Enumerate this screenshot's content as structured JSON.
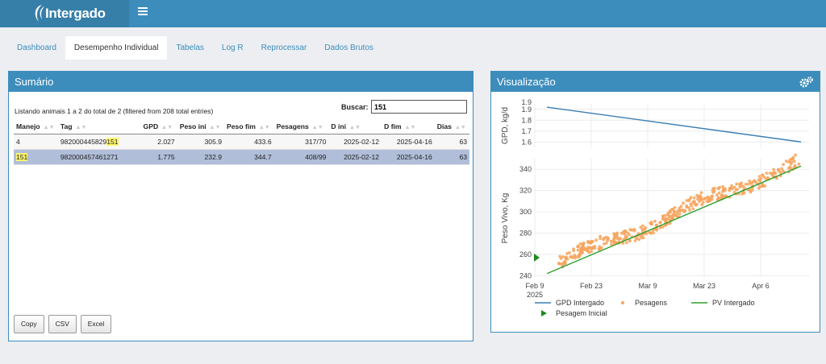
{
  "app": {
    "logo_text": "Intergado",
    "menu_icon": "hamburger-icon"
  },
  "tabs": [
    {
      "label": "Dashboard",
      "active": false
    },
    {
      "label": "Desempenho Individual",
      "active": true
    },
    {
      "label": "Tabelas",
      "active": false
    },
    {
      "label": "Log R",
      "active": false
    },
    {
      "label": "Reprocessar",
      "active": false
    },
    {
      "label": "Dados Brutos",
      "active": false
    }
  ],
  "sumario": {
    "title": "Sumário",
    "info": "Listando animais 1 a 2 do total de 2 (filtered from 208 total entries)",
    "search_label": "Buscar:",
    "search_value": "151",
    "columns": [
      "Manejo",
      "Tag",
      "GPD",
      "Peso ini",
      "Peso fim",
      "Pesagens",
      "D ini",
      "D fim",
      "Dias"
    ],
    "rows": [
      {
        "manejo": "4",
        "tag_prefix": "982000445829",
        "tag_match": "151",
        "gpd": "2.027",
        "peso_ini": "305.9",
        "peso_fim": "433.6",
        "pesagens": "317/70",
        "d_ini": "2025-02-12",
        "d_fim": "2025-04-16",
        "dias": "63"
      },
      {
        "manejo": "151",
        "tag": "982000457461271",
        "gpd": "1.775",
        "peso_ini": "232.9",
        "peso_fim": "344.7",
        "pesagens": "408/99",
        "d_ini": "2025-02-12",
        "d_fim": "2025-04-16",
        "dias": "63"
      }
    ],
    "buttons": {
      "copy": "Copy",
      "csv": "CSV",
      "excel": "Excel"
    }
  },
  "visualizacao": {
    "title": "Visualização",
    "settings_icon": "gears-icon"
  },
  "colors": {
    "header": "#3c8dbc",
    "gpd_line": "#3c7fb1",
    "pesagens": "#f7a35c",
    "pv_line": "#2ca02c",
    "pesagem_inicial": "#1e8a1e",
    "search_highlight": "#fef86a"
  },
  "chart_data": {
    "type": "line",
    "x_axis": {
      "ticks": [
        "Feb 9\n2025",
        "Feb 23",
        "Mar 9",
        "Mar 23",
        "Apr 6"
      ],
      "range": [
        "2025-02-09",
        "2025-04-18"
      ]
    },
    "subplots": [
      {
        "ylabel": "GPD, kg/d",
        "ylim": [
          1.55,
          1.95
        ],
        "yticks": [
          "1.6",
          "1.7",
          "1.8",
          "1.9"
        ],
        "series": [
          {
            "name": "GPD Intergado",
            "type": "line",
            "points": [
              [
                "2025-02-12",
                1.92
              ],
              [
                "2025-04-16",
                1.6
              ]
            ]
          }
        ]
      },
      {
        "ylabel": "Peso Vivo, Kg",
        "ylim": [
          238,
          350
        ],
        "yticks": [
          "240",
          "260",
          "280",
          "300",
          "320",
          "340"
        ],
        "series": [
          {
            "name": "Pesagem Inicial",
            "type": "marker",
            "points": [
              [
                "2025-02-11",
                257
              ]
            ]
          },
          {
            "name": "PV Intergado",
            "type": "line",
            "points": [
              [
                "2025-02-12",
                242
              ],
              [
                "2025-04-16",
                343
              ]
            ]
          },
          {
            "name": "Pesagens",
            "type": "scatter",
            "count": 408,
            "range": [
              "2025-02-15",
              "2025-04-16"
            ],
            "spread": 6
          }
        ]
      }
    ],
    "legend": [
      "GPD Intergado",
      "Pesagens",
      "PV Intergado",
      "Pesagem Inicial"
    ],
    "legend_position": "bottom"
  }
}
